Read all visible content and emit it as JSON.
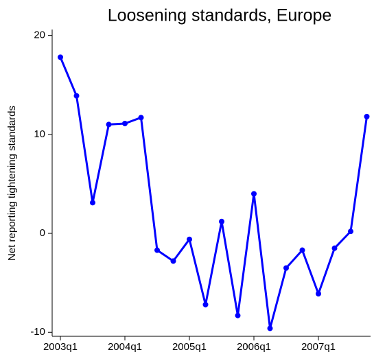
{
  "chart_data": {
    "type": "line",
    "title": "Loosening standards, Europe",
    "y_label": "Net reporting tightening standards",
    "categories": [
      "2003q1",
      null,
      null,
      null,
      "2004q1",
      null,
      null,
      null,
      "2005q1",
      null,
      null,
      null,
      "2006q1",
      null,
      null,
      null,
      "2007q1",
      null,
      null,
      null
    ],
    "series": [
      {
        "name": "Net reporting tightening standards",
        "color": "#0000ff",
        "values": [
          17.8,
          13.9,
          3.1,
          11.0,
          11.1,
          11.7,
          -1.7,
          -2.8,
          -0.6,
          -7.2,
          1.2,
          -8.3,
          4.0,
          -9.6,
          -3.5,
          -1.7,
          -6.1,
          -1.5,
          0.2,
          11.8
        ]
      }
    ],
    "ylim": [
      -10.4,
      20.6
    ],
    "yticks": [
      -10,
      0,
      10,
      20
    ],
    "grid": false
  }
}
